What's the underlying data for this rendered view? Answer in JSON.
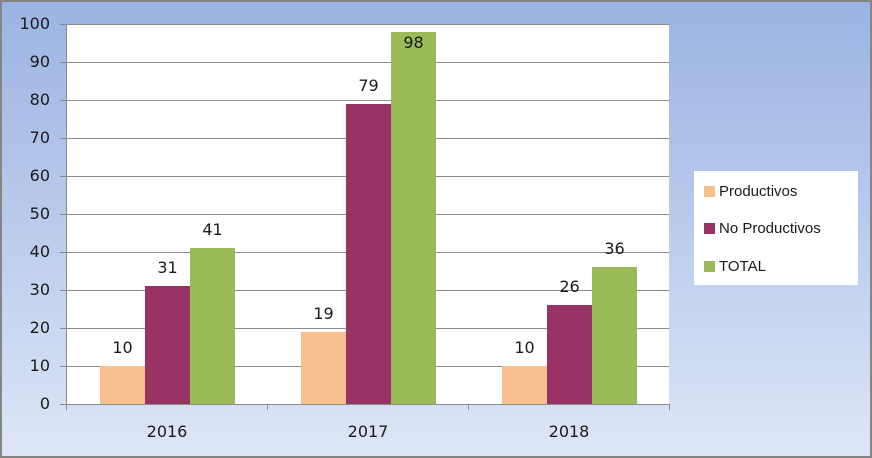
{
  "chart_data": {
    "type": "bar",
    "title": "",
    "xlabel": "",
    "ylabel": "",
    "categories": [
      "2016",
      "2017",
      "2018"
    ],
    "series": [
      {
        "name": "Productivos",
        "color": "#f9c08f",
        "values": [
          10,
          19,
          10
        ]
      },
      {
        "name": "No Productivos",
        "color": "#993366",
        "values": [
          31,
          79,
          26
        ]
      },
      {
        "name": "TOTAL",
        "color": "#9bbb59",
        "values": [
          41,
          98,
          36
        ]
      }
    ],
    "ylim": [
      0,
      100
    ],
    "yticks": [
      0,
      10,
      20,
      30,
      40,
      50,
      60,
      70,
      80,
      90,
      100
    ],
    "grid": true,
    "legend_position": "right",
    "data_labels": true
  },
  "legend": {
    "items": [
      {
        "label": "Productivos",
        "color": "#f9c08f"
      },
      {
        "label": "No Productivos",
        "color": "#993366"
      },
      {
        "label": "TOTAL",
        "color": "#9bbb59"
      }
    ]
  }
}
